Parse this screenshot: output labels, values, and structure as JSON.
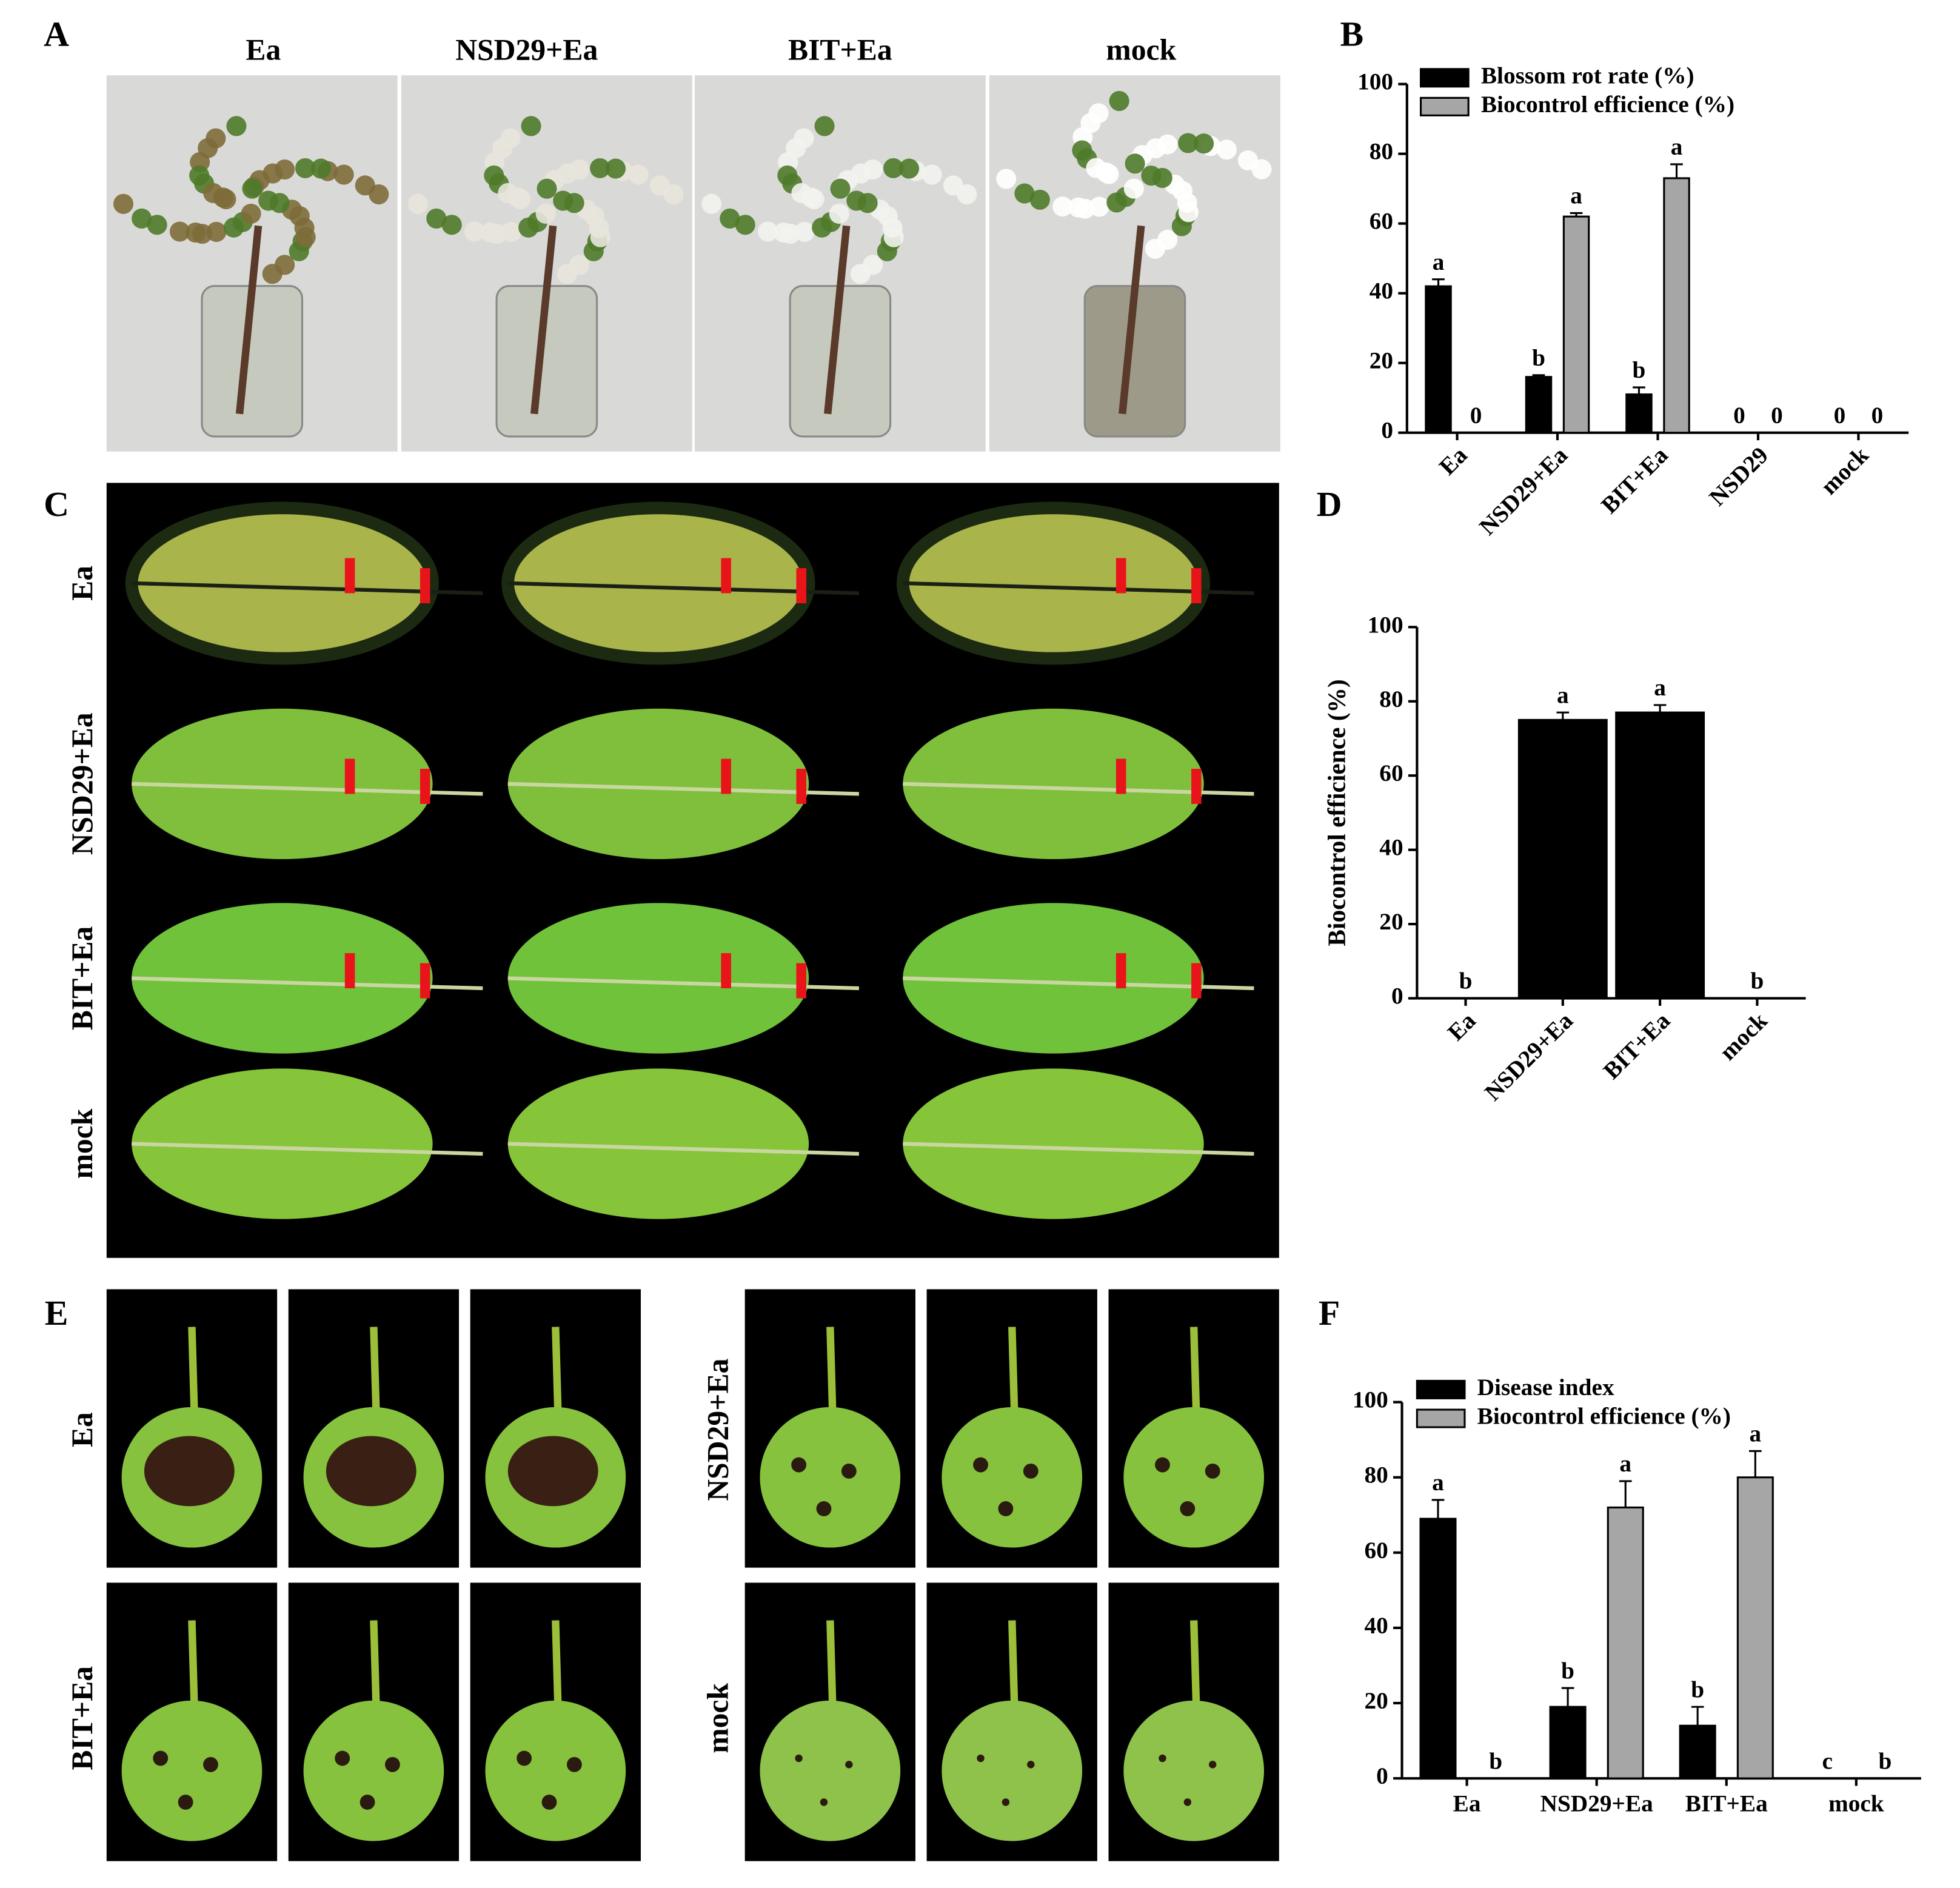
{
  "figure": {
    "panel_labels": [
      "A",
      "B",
      "C",
      "D",
      "E",
      "F"
    ],
    "photo_a_columns": [
      "Ea",
      "NSD29+Ea",
      "BIT+Ea",
      "mock"
    ],
    "photo_c_rows": [
      "Ea",
      "NSD29+Ea",
      "BIT+Ea",
      "mock"
    ],
    "photo_e_labels": [
      "Ea",
      "BIT+Ea",
      "NSD29+Ea",
      "mock"
    ]
  },
  "chart_data": [
    {
      "type": "bar",
      "categories": [
        "Ea",
        "NSD29+Ea",
        "BIT+Ea",
        "NSD29",
        "mock"
      ],
      "series": [
        {
          "name": "Blossom rot rate (%)",
          "color": "#000000",
          "values": [
            42,
            16,
            11,
            0,
            0
          ],
          "errors": [
            2,
            0.5,
            2,
            0,
            0
          ],
          "letters": [
            "a",
            "b",
            "b",
            null,
            null
          ]
        },
        {
          "name": "Biocontrol efficience (%)",
          "color": "#a6a6a6",
          "values": [
            0,
            62,
            73,
            0,
            0
          ],
          "errors": [
            0,
            1,
            4,
            0,
            0
          ],
          "letters": [
            null,
            "a",
            "a",
            null,
            null
          ]
        }
      ],
      "ylim": [
        0,
        100
      ],
      "yticks": [
        0,
        20,
        40,
        60,
        80,
        100
      ],
      "xtick_rotation": -45,
      "legend": "top-left"
    },
    {
      "type": "bar",
      "categories": [
        "Ea",
        "NSD29+Ea",
        "BIT+Ea",
        "mock"
      ],
      "ylabel": "Biocontrol efficience (%)",
      "series": [
        {
          "color": "#000000",
          "values": [
            0,
            75,
            77,
            0
          ],
          "errors": [
            0,
            2,
            2,
            0
          ],
          "letters": [
            "b",
            "a",
            "a",
            "b"
          ]
        }
      ],
      "ylim": [
        0,
        100
      ],
      "yticks": [
        0,
        20,
        40,
        60,
        80,
        100
      ],
      "xtick_rotation": -45
    },
    {
      "type": "bar",
      "categories": [
        "Ea",
        "NSD29+Ea",
        "BIT+Ea",
        "mock"
      ],
      "series": [
        {
          "name": "Disease index",
          "color": "#000000",
          "values": [
            69,
            19,
            14,
            0
          ],
          "errors": [
            5,
            5,
            5,
            0
          ],
          "letters": [
            "a",
            "b",
            "b",
            "c"
          ]
        },
        {
          "name": "Biocontrol efficience (%)",
          "color": "#a6a6a6",
          "values": [
            0,
            72,
            80,
            0
          ],
          "errors": [
            0,
            7,
            7,
            0
          ],
          "letters": [
            "b",
            "a",
            "a",
            "b"
          ]
        }
      ],
      "ylim": [
        0,
        100
      ],
      "yticks": [
        0,
        20,
        40,
        60,
        80,
        100
      ],
      "xtick_rotation": 0,
      "legend": "top-left"
    }
  ]
}
